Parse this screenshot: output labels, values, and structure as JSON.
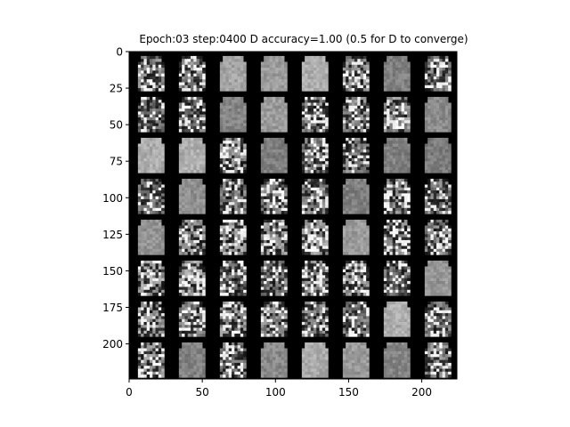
{
  "figure": {
    "title": "Epoch:03 step:0400 D accuracy=1.00 (0.5 for D to converge)"
  },
  "image_grid": {
    "rows": 8,
    "cols": 8,
    "cell_size_data_units": 28,
    "extent": [
      0,
      224,
      224,
      0
    ],
    "colormap": "gray",
    "background": "#000000"
  },
  "axes": {
    "xticks": [
      0,
      50,
      100,
      150,
      200
    ],
    "yticks": [
      0,
      25,
      50,
      75,
      100,
      125,
      150,
      175,
      200
    ],
    "xlim": [
      0,
      224
    ],
    "ylim": [
      224,
      0
    ],
    "grid": false
  }
}
